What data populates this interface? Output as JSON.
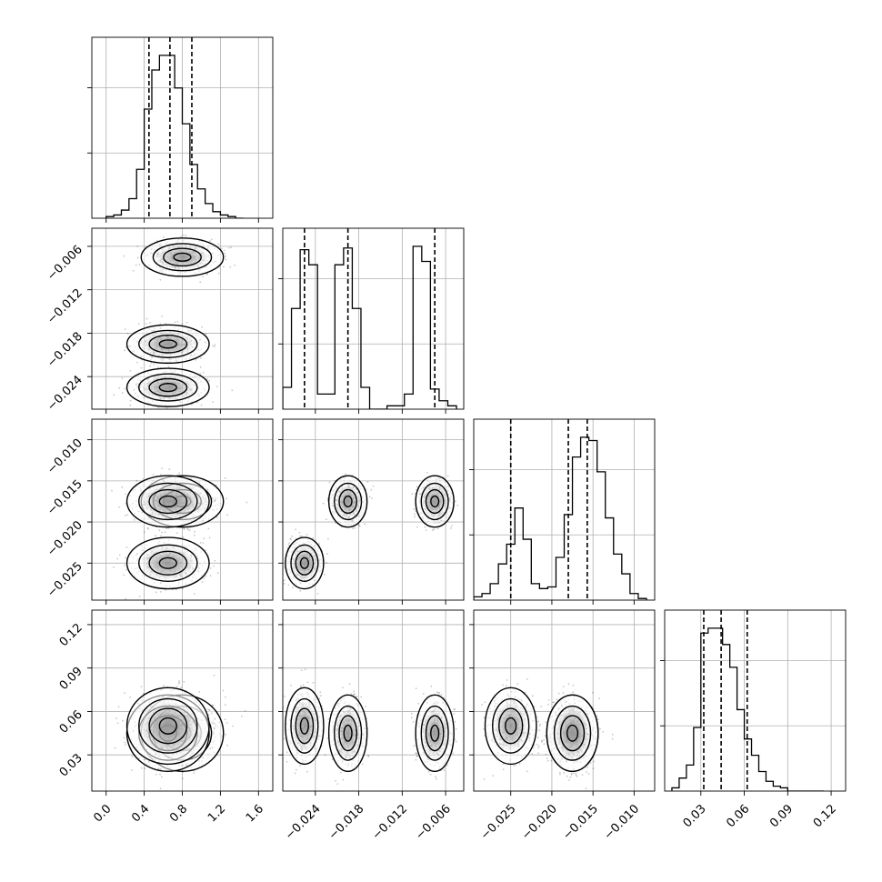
{
  "chart_data": {
    "type": "corner",
    "parameters": [
      {
        "id": "p0",
        "range": [
          -0.15,
          1.75
        ],
        "ticks": [
          0.0,
          0.4,
          0.8,
          1.2,
          1.6
        ],
        "tick_labels": [
          "0.0",
          "0.4",
          "0.8",
          "1.2",
          "1.6"
        ],
        "quantiles": [
          0.45,
          0.67,
          0.9
        ],
        "hist": {
          "start": 0.0,
          "step": 0.08,
          "counts": [
            0.01,
            0.02,
            0.05,
            0.12,
            0.3,
            0.67,
            0.91,
            1.0,
            1.0,
            0.8,
            0.58,
            0.33,
            0.18,
            0.09,
            0.04,
            0.02,
            0.01,
            0.0
          ]
        }
      },
      {
        "id": "p1",
        "range": [
          -0.0285,
          -0.0035
        ],
        "ticks": [
          -0.024,
          -0.018,
          -0.012,
          -0.006
        ],
        "tick_labels": [
          "−0.024",
          "−0.018",
          "−0.012",
          "−0.006"
        ],
        "quantiles": [
          -0.0255,
          -0.0195,
          -0.0075
        ],
        "hist": {
          "start": -0.0285,
          "step": 0.0012,
          "counts": [
            0.13,
            0.6,
            0.95,
            0.86,
            0.09,
            0.09,
            0.86,
            0.96,
            0.6,
            0.13,
            0.0,
            0.0,
            0.02,
            0.02,
            0.09,
            0.97,
            0.88,
            0.12,
            0.05,
            0.02
          ]
        }
      },
      {
        "id": "p2",
        "range": [
          -0.0295,
          -0.0075
        ],
        "ticks": [
          -0.01,
          -0.015,
          -0.02,
          -0.025
        ],
        "tick_labels": [
          "−0.010",
          "−0.015",
          "−0.020",
          "−0.025"
        ],
        "quantiles": [
          -0.025,
          -0.018,
          -0.0157
        ],
        "hist": {
          "start": -0.0295,
          "step": 0.001,
          "counts": [
            0.02,
            0.04,
            0.1,
            0.22,
            0.34,
            0.56,
            0.37,
            0.1,
            0.07,
            0.08,
            0.26,
            0.52,
            0.87,
            0.99,
            0.97,
            0.78,
            0.5,
            0.28,
            0.16,
            0.04,
            0.01
          ]
        }
      },
      {
        "id": "p3",
        "range": [
          0.005,
          0.13
        ],
        "ticks": [
          0.03,
          0.06,
          0.09,
          0.12
        ],
        "tick_labels": [
          "0.03",
          "0.06",
          "0.09",
          "0.12"
        ],
        "quantiles": [
          0.032,
          0.044,
          0.062
        ],
        "hist": {
          "start": 0.01,
          "step": 0.005,
          "counts": [
            0.02,
            0.08,
            0.16,
            0.39,
            0.97,
            1.0,
            1.0,
            0.9,
            0.76,
            0.5,
            0.32,
            0.22,
            0.12,
            0.06,
            0.03,
            0.02,
            0.0,
            0.0,
            0.0,
            0.0,
            0.0
          ]
        }
      }
    ],
    "clusters": [
      {
        "p0": 0.8,
        "p1": -0.0075,
        "p2": -0.0175,
        "p3": 0.045,
        "w": 0.33
      },
      {
        "p0": 0.65,
        "p1": -0.0195,
        "p2": -0.0175,
        "p3": 0.045,
        "w": 0.33
      },
      {
        "p0": 0.65,
        "p1": -0.0255,
        "p2": -0.025,
        "p3": 0.05,
        "w": 0.34
      }
    ],
    "x_tick_rotation": -45,
    "y_tick_rotation": -45,
    "grid": true,
    "legend": "none"
  }
}
